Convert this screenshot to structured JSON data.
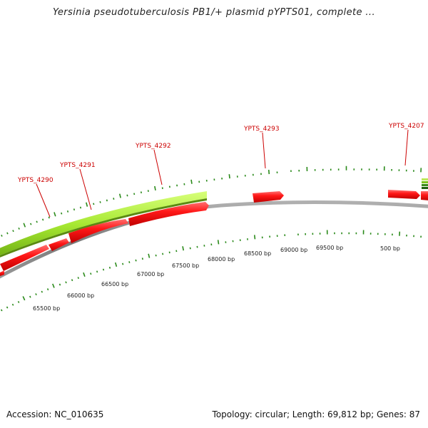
{
  "title": "Yersinia pseudotuberculosis PB1/+ plasmid pYPTS01, complete ...",
  "footer": {
    "accession": "Accession: NC_010635",
    "summary": "Topology: circular; Length: 69,812 bp; Genes: 87"
  },
  "colors": {
    "gene_forward": "#ff1010",
    "feature_band": "#99dd22",
    "backbone": "#888888",
    "tick": "#2a8a1a",
    "label": "#cc0000"
  },
  "gene_labels": [
    "YPTS_4290",
    "YPTS_4291",
    "YPTS_4292",
    "YPTS_4293",
    "YPTS_4207"
  ],
  "bp_labels": [
    "65500 bp",
    "66000 bp",
    "66500 bp",
    "67000 bp",
    "67500 bp",
    "68000 bp",
    "68500 bp",
    "69000 bp",
    "69500 bp",
    "500 bp"
  ]
}
